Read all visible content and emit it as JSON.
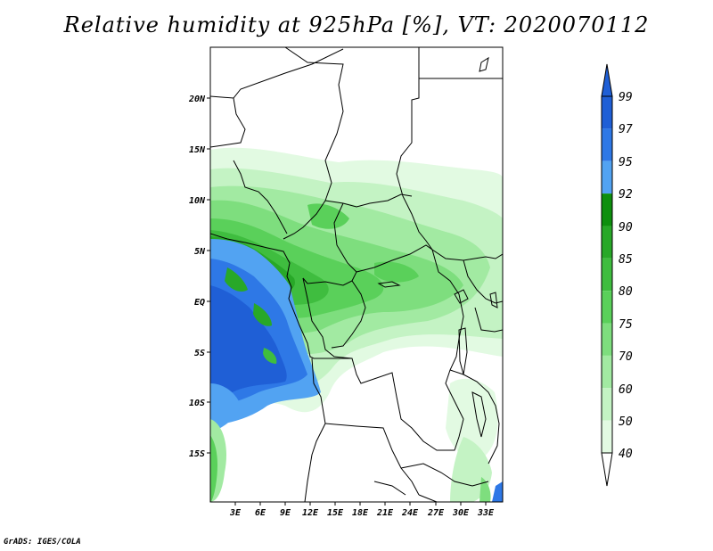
{
  "title": "Relative humidity at 925hPa [%], VT: 2020070112",
  "credit": "GrADS: IGES/COLA",
  "axes": {
    "lat_labels": [
      "20N",
      "15N",
      "10N",
      "5N",
      "EQ",
      "5S",
      "10S",
      "15S"
    ],
    "lon_labels": [
      "3E",
      "6E",
      "9E",
      "12E",
      "15E",
      "18E",
      "21E",
      "24E",
      "27E",
      "30E",
      "33E"
    ]
  },
  "colorbar": {
    "levels": [
      "99",
      "97",
      "95",
      "92",
      "90",
      "85",
      "80",
      "75",
      "70",
      "60",
      "50",
      "40"
    ],
    "colors": [
      "#1f5fd6",
      "#2e78e6",
      "#52a3f2",
      "#0e8f0e",
      "#28a828",
      "#3fbd3f",
      "#5ad05a",
      "#7ede7e",
      "#a2eaa2",
      "#c4f3c4",
      "#e2fae2",
      "#ffffff"
    ]
  },
  "chart_data": {
    "type": "heatmap",
    "title": "Relative humidity at 925hPa [%], VT: 2020070112",
    "variable": "Relative humidity",
    "units": "%",
    "level": "925hPa",
    "valid_time": "2020070112",
    "lat_range": [
      "19S",
      "24N"
    ],
    "lon_range": [
      "0E",
      "35E"
    ],
    "contour_levels": [
      40,
      50,
      60,
      70,
      75,
      80,
      85,
      90,
      92,
      95,
      97,
      99
    ]
  }
}
